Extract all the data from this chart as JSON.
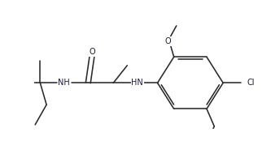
{
  "bg_color": "#ffffff",
  "line_color": "#2a2a2a",
  "text_color": "#1a1a3a",
  "lw": 1.15,
  "fs": 7.0,
  "figsize": [
    3.33,
    1.79
  ],
  "dpi": 100,
  "xlim": [
    0,
    333
  ],
  "ylim": [
    0,
    179
  ]
}
